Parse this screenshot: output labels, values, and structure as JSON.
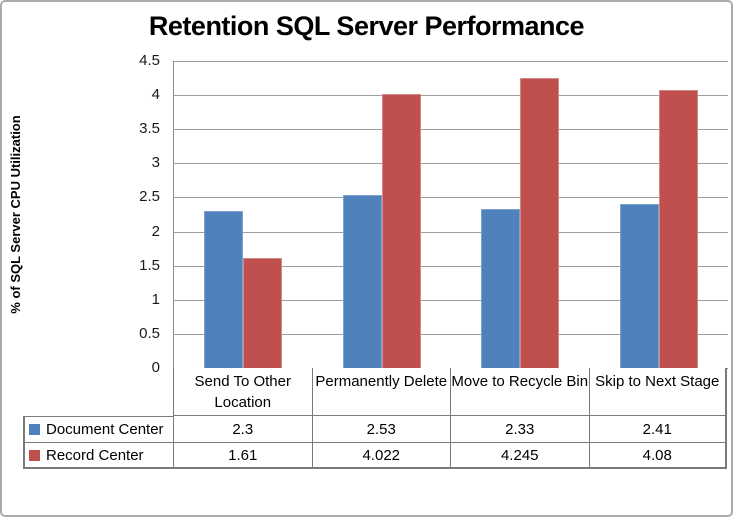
{
  "window": {
    "background": "#ffffff",
    "frame_border_color": "#ababab"
  },
  "chart_data": {
    "type": "bar",
    "title": "Retention SQL Server Performance",
    "xlabel": "",
    "ylabel": "% of SQL Server CPU Utilization",
    "categories": [
      "Send To Other Location",
      "Permanently Delete",
      "Move to Recycle Bin",
      "Skip to Next Stage"
    ],
    "series": [
      {
        "name": "Document Center",
        "color": "#4f81bd",
        "border_color": "#7fa1cd",
        "values": [
          2.3,
          2.53,
          2.33,
          2.41
        ],
        "display_values": [
          "2.3",
          "2.53",
          "2.33",
          "2.41"
        ]
      },
      {
        "name": "Record Center",
        "color": "#c0504d",
        "border_color": "#d08a88",
        "values": [
          1.61,
          4.022,
          4.245,
          4.08
        ],
        "display_values": [
          "1.61",
          "4.022",
          "4.245",
          "4.08"
        ]
      }
    ],
    "ylim": [
      0,
      4.5
    ],
    "ytick_step": 0.5,
    "yticks": [
      "4.5",
      "4",
      "3.5",
      "3",
      "2.5",
      "2",
      "1.5",
      "1",
      "0.5",
      "0"
    ],
    "grid": true,
    "legend_position": "data-table-left",
    "data_table_shown": true,
    "colors": {
      "gridline": "#9d9d9d",
      "axis": "#8a8a8a",
      "table_border": "#7a7a7a",
      "title_text": "#000000"
    }
  }
}
